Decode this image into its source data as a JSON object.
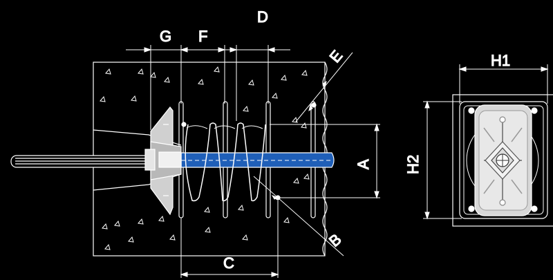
{
  "diagram": {
    "labels": {
      "G": "G",
      "F": "F",
      "D": "D",
      "E": "E",
      "A": "A",
      "B": "B",
      "C": "C",
      "H1": "H1",
      "H2": "H2"
    },
    "colors": {
      "background": "#000000",
      "line": "#ffffff",
      "bar_fill": "#1f5fb8",
      "anchor_plate": "#c8c8c8",
      "anchor_plate_light": "#e4e4e4"
    }
  }
}
